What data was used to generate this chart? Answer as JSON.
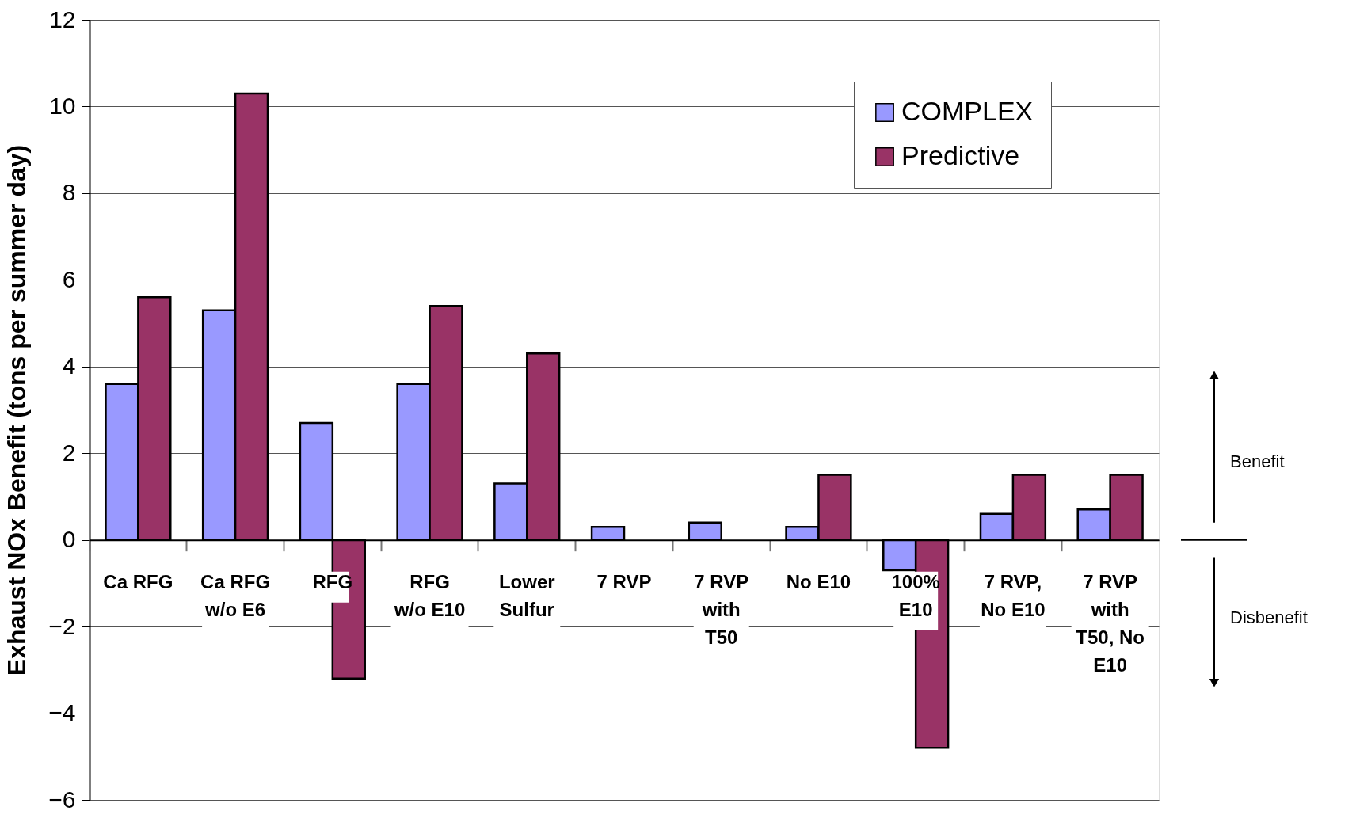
{
  "chart_data": {
    "type": "bar",
    "ylabel": "Exhaust NOx Benefit (tons per summer day)",
    "categories": [
      "Ca RFG",
      "Ca RFG\nw/o E6",
      "RFG",
      "RFG\nw/o E10",
      "Lower\nSulfur",
      "7 RVP",
      "7 RVP\nwith\nT50",
      "No E10",
      "100%\nE10",
      "7 RVP,\nNo E10",
      "7 RVP\nwith\nT50, No\nE10"
    ],
    "series": [
      {
        "name": "COMPLEX",
        "color": "#9999ff",
        "values": [
          3.6,
          5.3,
          2.7,
          3.6,
          1.3,
          0.3,
          0.4,
          0.3,
          -0.7,
          0.6,
          0.7
        ]
      },
      {
        "name": "Predictive",
        "color": "#993366",
        "values": [
          5.6,
          10.3,
          -3.2,
          5.4,
          4.3,
          null,
          null,
          1.5,
          -4.8,
          1.5,
          1.5
        ]
      }
    ],
    "ylim": [
      -6,
      12
    ],
    "yticks": [
      -6,
      -4,
      -2,
      0,
      2,
      4,
      6,
      8,
      10,
      12
    ],
    "grid": "y",
    "legend": "top right",
    "annotations": [
      "Benefit",
      "Disbenefit"
    ]
  }
}
